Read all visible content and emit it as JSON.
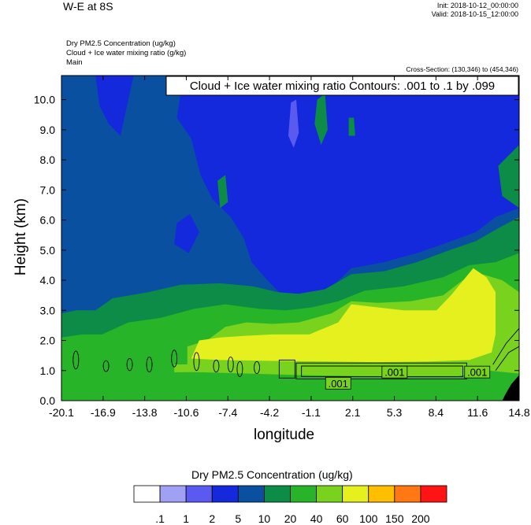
{
  "header": {
    "title": "W-E at 8S",
    "init": "Init: 2018-10-12_00:00:00",
    "valid": "Valid: 2018-10-15_12:00:00",
    "fields": [
      "Dry PM2.5 Concentration   (ug/kg)",
      "Cloud + Ice water mixing ratio   (g/kg)",
      "Main"
    ],
    "cross_section": "Cross-Section: (130,346) to (454,346)"
  },
  "chart_data": {
    "type": "heatmap",
    "xlabel": "longitude",
    "ylabel": "Height (km)",
    "xlim": [
      -20.1,
      14.8
    ],
    "ylim": [
      0.0,
      10.8
    ],
    "x_ticks": [
      "-20.1",
      "-16.9",
      "-13.8",
      "-10.6",
      "-7.4",
      "-4.2",
      "-1.1",
      "2.1",
      "5.3",
      "8.4",
      "11.6",
      "14.8"
    ],
    "y_ticks": [
      "0.0",
      "1.0",
      "2.0",
      "3.0",
      "4.0",
      "5.0",
      "6.0",
      "7.0",
      "8.0",
      "9.0",
      "10.0"
    ],
    "grid": false,
    "contour_info": "Cloud + Ice water mixing ratio Contours: .001 to .1 by .099",
    "contour_labels": [
      ".001",
      ".001",
      ".001"
    ],
    "colorbar": {
      "title": "Dry PM2.5 Concentration  (ug/kg)",
      "levels": [
        ".1",
        "1",
        "2",
        "5",
        "10",
        "20",
        "40",
        "60",
        "100",
        "150",
        "200"
      ],
      "colors": [
        "#ffffff",
        "#a0a0f5",
        "#5a5af0",
        "#1428dc",
        "#0a50a0",
        "#0c8c46",
        "#28b428",
        "#78d21e",
        "#e6f01e",
        "#ffbe00",
        "#ff7814",
        "#ff1414"
      ]
    },
    "shading_levels": [
      {
        "name": "5-10",
        "color": "#0a50a0"
      },
      {
        "name": "2-5",
        "color": "#1428dc"
      },
      {
        "name": "1-2",
        "color": "#5a5af0"
      },
      {
        "name": "10-20",
        "color": "#0c8c46"
      },
      {
        "name": "20-40",
        "color": "#28b428"
      },
      {
        "name": "40-60",
        "color": "#78d21e"
      },
      {
        "name": "60-100",
        "color": "#e6f01e"
      },
      {
        "name": "terrain",
        "color": "#000000"
      }
    ]
  }
}
